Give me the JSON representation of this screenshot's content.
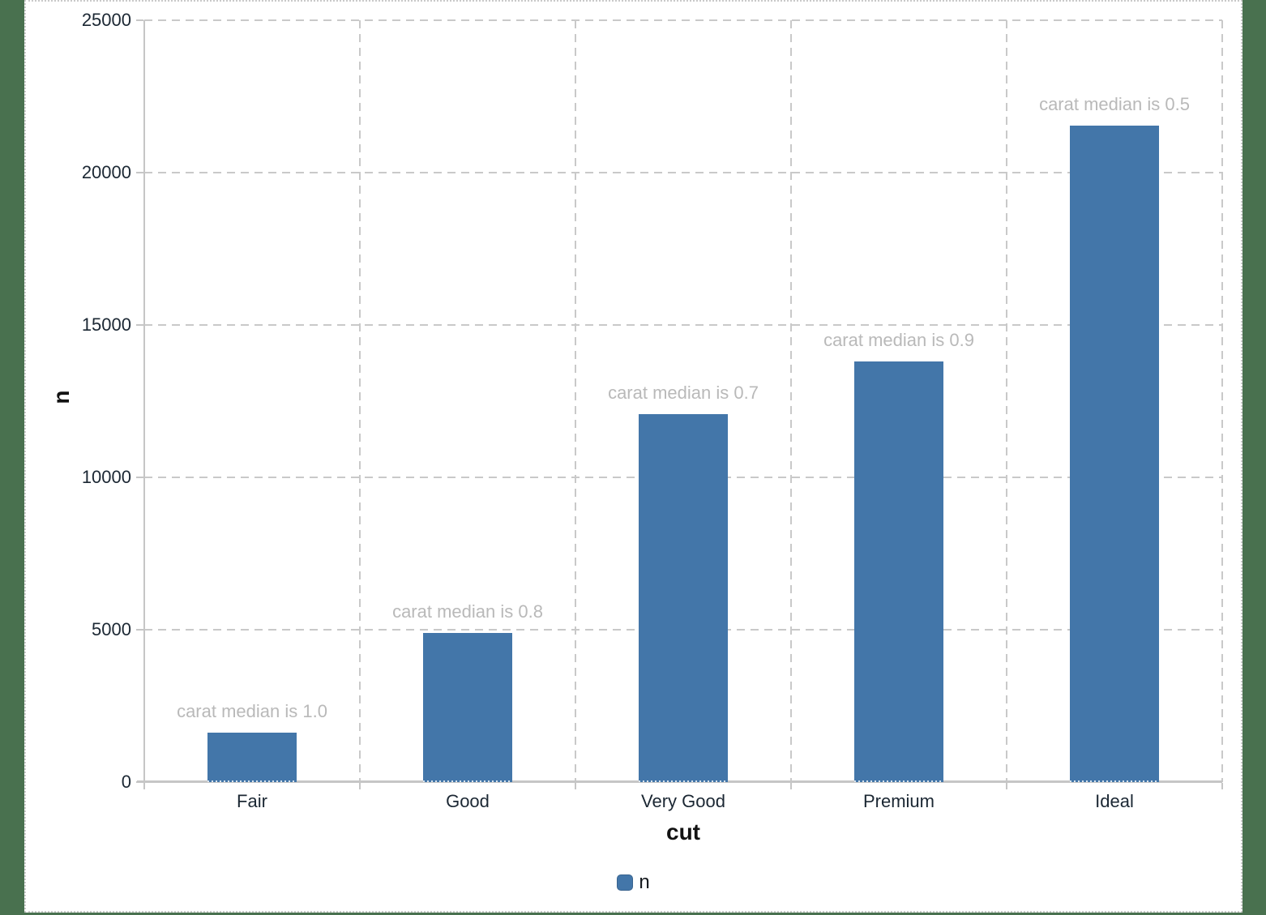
{
  "chart_data": {
    "type": "bar",
    "title": "",
    "xlabel": "cut",
    "ylabel": "n",
    "categories": [
      "Fair",
      "Good",
      "Very Good",
      "Premium",
      "Ideal"
    ],
    "series": [
      {
        "name": "n",
        "values": [
          1610,
          4906,
          12082,
          13791,
          21551
        ]
      }
    ],
    "annotations": [
      "carat median is 1.0",
      "carat median is 0.8",
      "carat median is 0.7",
      "carat median is 0.9",
      "carat median is 0.5"
    ],
    "ylim": [
      0,
      25000
    ],
    "yticks": [
      0,
      5000,
      10000,
      15000,
      20000,
      25000
    ],
    "grid": "dashed horizontal and vertical",
    "legend_position": "bottom-center"
  },
  "legend": {
    "label": "n"
  },
  "colors": {
    "bar": "#4376a9",
    "annotation_text": "#b9b9b9",
    "axis_line": "#c6c6c6",
    "gridline": "#c9c9c9",
    "tick_text": "#1b2733",
    "surround_background": "#49714f",
    "plot_background": "#ffffff"
  }
}
